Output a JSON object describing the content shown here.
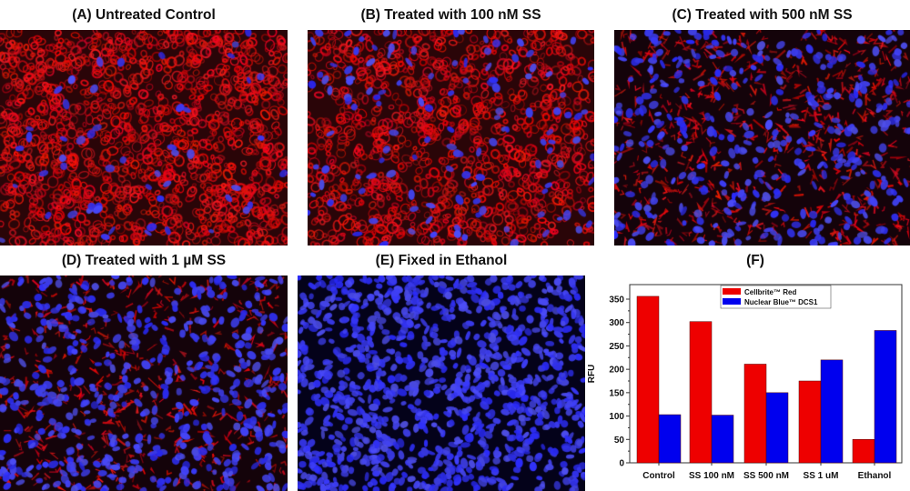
{
  "panels": [
    {
      "id": "A",
      "title": "(A) Untreated Control",
      "red_density": 1.0,
      "blue_density": 0.05,
      "seed": 11
    },
    {
      "id": "B",
      "title": "(B) Treated with 100 nM SS",
      "red_density": 0.8,
      "blue_density": 0.12,
      "seed": 23
    },
    {
      "id": "C",
      "title": "(C) Treated with 500 nM SS",
      "red_density": 0.45,
      "blue_density": 0.35,
      "seed": 37
    },
    {
      "id": "D",
      "title": "(D) Treated with 1 µM SS",
      "red_density": 0.35,
      "blue_density": 0.5,
      "seed": 51
    },
    {
      "id": "E",
      "title": "(E) Fixed in Ethanol",
      "red_density": 0.0,
      "blue_density": 1.0,
      "seed": 67
    }
  ],
  "chart_panel_title": "(F)",
  "colors": {
    "red": "#ee0000",
    "blue": "#0000ee",
    "axis": "#333333"
  },
  "chart_data": {
    "type": "bar",
    "title": "(F)",
    "xlabel": "",
    "ylabel": "RFU",
    "categories": [
      "Control",
      "SS 100 nM",
      "SS 500 nM",
      "SS 1 uM",
      "Ethanol"
    ],
    "series": [
      {
        "name": "Cellbrite™ Red",
        "color": "#ee0000",
        "values": [
          356,
          302,
          211,
          175,
          50
        ]
      },
      {
        "name": "Nuclear Blue™ DCS1",
        "color": "#0000ee",
        "values": [
          103,
          102,
          150,
          220,
          283
        ]
      }
    ],
    "ylim": [
      0,
      380
    ],
    "yticks": [
      0,
      50,
      100,
      150,
      200,
      250,
      300,
      350
    ],
    "grid": false,
    "legend_position": "upper-center-right (inside plot)"
  }
}
